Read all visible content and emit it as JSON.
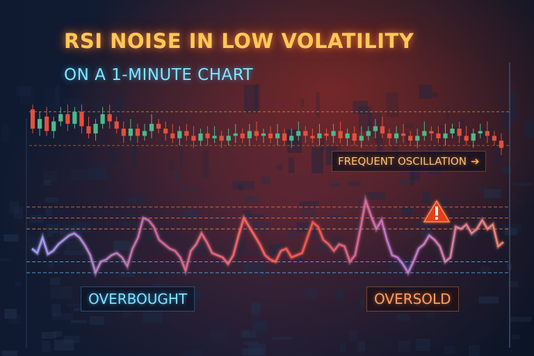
{
  "title": "RSI NOISE IN LOW VOLATILITY",
  "subtitle": "ON A 1-MINUTE CHART",
  "labels": {
    "frequent_oscillation": "FREQUENT OSCILLATION",
    "arrow_glyph": "➔",
    "overbought": "OVERBOUGHT",
    "oversold": "OVERSOLD"
  },
  "colors": {
    "bullish": "#4fb889",
    "bearish": "#e2503c",
    "rsi_cool": "#8a7dff",
    "rsi_warm": "#ff6a5a",
    "overbought_line": "#5fc3ff",
    "oversold_line": "#ff7a3d"
  },
  "icons": {
    "warning": "warning-triangle-icon"
  },
  "chart_data": [
    {
      "type": "candlestick",
      "title": "",
      "candles": [
        {
          "o": 57,
          "c": 49
        },
        {
          "o": 49,
          "c": 53
        },
        {
          "o": 54,
          "c": 48
        },
        {
          "o": 48,
          "c": 52
        },
        {
          "o": 52,
          "c": 55
        },
        {
          "o": 55,
          "c": 51
        },
        {
          "o": 51,
          "c": 56
        },
        {
          "o": 56,
          "c": 50
        },
        {
          "o": 50,
          "c": 47
        },
        {
          "o": 47,
          "c": 51
        },
        {
          "o": 51,
          "c": 55
        },
        {
          "o": 55,
          "c": 52
        },
        {
          "o": 52,
          "c": 49
        },
        {
          "o": 49,
          "c": 46
        },
        {
          "o": 46,
          "c": 49
        },
        {
          "o": 49,
          "c": 46
        },
        {
          "o": 46,
          "c": 48
        },
        {
          "o": 48,
          "c": 51
        },
        {
          "o": 51,
          "c": 49
        },
        {
          "o": 49,
          "c": 47
        },
        {
          "o": 47,
          "c": 45
        },
        {
          "o": 45,
          "c": 48
        },
        {
          "o": 48,
          "c": 46
        },
        {
          "o": 46,
          "c": 44
        },
        {
          "o": 44,
          "c": 47
        },
        {
          "o": 47,
          "c": 45
        },
        {
          "o": 45,
          "c": 46
        },
        {
          "o": 46,
          "c": 44
        },
        {
          "o": 44,
          "c": 46
        },
        {
          "o": 46,
          "c": 47
        },
        {
          "o": 47,
          "c": 45
        },
        {
          "o": 45,
          "c": 48
        },
        {
          "o": 48,
          "c": 46
        },
        {
          "o": 46,
          "c": 47
        },
        {
          "o": 47,
          "c": 45
        },
        {
          "o": 45,
          "c": 47
        },
        {
          "o": 47,
          "c": 44
        },
        {
          "o": 44,
          "c": 46
        },
        {
          "o": 46,
          "c": 48
        },
        {
          "o": 48,
          "c": 46
        },
        {
          "o": 46,
          "c": 45
        },
        {
          "o": 45,
          "c": 47
        },
        {
          "o": 47,
          "c": 46
        },
        {
          "o": 46,
          "c": 48
        },
        {
          "o": 48,
          "c": 45
        },
        {
          "o": 45,
          "c": 47
        },
        {
          "o": 47,
          "c": 44
        },
        {
          "o": 44,
          "c": 46
        },
        {
          "o": 46,
          "c": 48
        },
        {
          "o": 48,
          "c": 50
        },
        {
          "o": 50,
          "c": 47
        },
        {
          "o": 47,
          "c": 45
        },
        {
          "o": 45,
          "c": 47
        },
        {
          "o": 47,
          "c": 46
        },
        {
          "o": 46,
          "c": 44
        },
        {
          "o": 44,
          "c": 46
        },
        {
          "o": 46,
          "c": 48
        },
        {
          "o": 48,
          "c": 47
        },
        {
          "o": 47,
          "c": 45
        },
        {
          "o": 45,
          "c": 47
        },
        {
          "o": 47,
          "c": 49
        },
        {
          "o": 49,
          "c": 46
        },
        {
          "o": 46,
          "c": 44
        },
        {
          "o": 44,
          "c": 47
        },
        {
          "o": 47,
          "c": 48
        },
        {
          "o": 48,
          "c": 46
        },
        {
          "o": 46,
          "c": 44
        },
        {
          "o": 44,
          "c": 41
        }
      ],
      "ylim": [
        36,
        62
      ],
      "reference_lines": [
        56,
        42
      ]
    },
    {
      "type": "line",
      "title": "",
      "series": [
        {
          "values": [
            52,
            48,
            62,
            47,
            50,
            56,
            60,
            64,
            66,
            62,
            55,
            46,
            30,
            40,
            42,
            46,
            48,
            44,
            36,
            52,
            62,
            80,
            78,
            72,
            60,
            56,
            52,
            50,
            44,
            32,
            50,
            56,
            66,
            58,
            48,
            46,
            44,
            38,
            46,
            64,
            80,
            72,
            64,
            56,
            46,
            42,
            40,
            50,
            52,
            44,
            46,
            48,
            62,
            76,
            72,
            60,
            56,
            50,
            56,
            54,
            40,
            46,
            70,
            96,
            82,
            70,
            78,
            60,
            46,
            44,
            38,
            30,
            40,
            52,
            56,
            64,
            60,
            54,
            40,
            44,
            72,
            70,
            74,
            66,
            70,
            78,
            70,
            74,
            54,
            58
          ]
        }
      ],
      "ylim": [
        20,
        100
      ],
      "reference_lines": [
        90,
        80,
        70,
        40,
        30
      ]
    }
  ]
}
